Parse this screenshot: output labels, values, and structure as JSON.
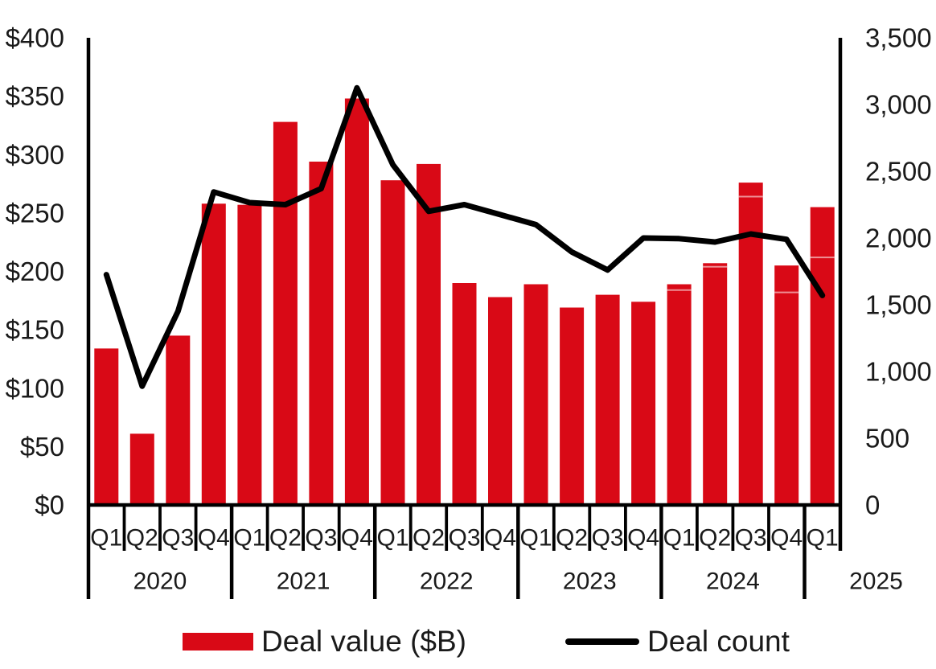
{
  "chart_data": {
    "type": "bar",
    "combo": "bar+line dual axis",
    "title": "",
    "x": {
      "quarters": [
        "Q1",
        "Q2",
        "Q3",
        "Q4",
        "Q1",
        "Q2",
        "Q3",
        "Q4",
        "Q1",
        "Q2",
        "Q3",
        "Q4",
        "Q1",
        "Q2",
        "Q3",
        "Q4",
        "Q1",
        "Q2",
        "Q3",
        "Q4",
        "Q1"
      ],
      "years": [
        {
          "label": "2020",
          "quarters": 4
        },
        {
          "label": "2021",
          "quarters": 4
        },
        {
          "label": "2022",
          "quarters": 4
        },
        {
          "label": "2023",
          "quarters": 4
        },
        {
          "label": "2024",
          "quarters": 4
        },
        {
          "label": "2025",
          "quarters": 1
        }
      ]
    },
    "series": [
      {
        "name": "Deal value ($B)",
        "type": "bar",
        "axis": "left",
        "color": "#d90916",
        "values": [
          134,
          61,
          145,
          258,
          257,
          328,
          294,
          348,
          278,
          292,
          190,
          178,
          189,
          169,
          180,
          174,
          189,
          207,
          276,
          205,
          255
        ],
        "segment_dividers": [
          null,
          null,
          null,
          null,
          null,
          null,
          null,
          null,
          null,
          null,
          null,
          null,
          null,
          null,
          null,
          null,
          184,
          204,
          264,
          182,
          212
        ]
      },
      {
        "name": "Deal count",
        "type": "line",
        "axis": "right",
        "color": "#000000",
        "values": [
          1725,
          890,
          1450,
          2345,
          2265,
          2250,
          2370,
          3125,
          2550,
          2200,
          2250,
          2175,
          2100,
          1895,
          1760,
          2000,
          1995,
          1970,
          2030,
          1990,
          1570
        ]
      }
    ],
    "left_axis": {
      "range": [
        0,
        400
      ],
      "tick_step": 50,
      "tick_labels": [
        "$400",
        "$350",
        "$300",
        "$250",
        "$200",
        "$150",
        "$100",
        "$50",
        "$0"
      ]
    },
    "right_axis": {
      "range": [
        0,
        3500
      ],
      "tick_step": 500,
      "tick_labels": [
        "3,500",
        "3,000",
        "2,500",
        "2,000",
        "1,500",
        "1,000",
        "500",
        "0"
      ]
    },
    "legend": [
      {
        "label": "Deal value ($B)",
        "swatch": "bar"
      },
      {
        "label": "Deal count",
        "swatch": "line"
      }
    ],
    "grid": "off",
    "legend_position": "bottom"
  }
}
